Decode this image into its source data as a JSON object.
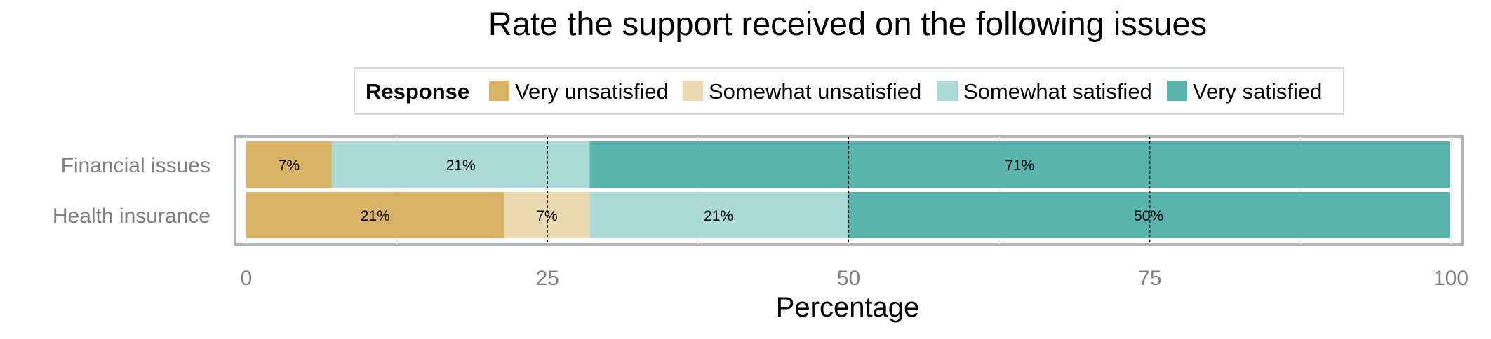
{
  "chart_data": {
    "type": "bar",
    "orientation": "horizontal",
    "stacked": true,
    "title": "Rate the support received on the following issues",
    "xlabel": "Percentage",
    "ylabel": "",
    "xlim": [
      0,
      100
    ],
    "x_ticks": [
      0,
      25,
      50,
      75,
      100
    ],
    "legend": {
      "title": "Response",
      "position": "top",
      "entries": [
        "Very unsatisfied",
        "Somewhat unsatisfied",
        "Somewhat satisfied",
        "Very satisfied"
      ]
    },
    "grid": true,
    "reference_lines": [
      25,
      50,
      75
    ],
    "categories": [
      "Financial issues",
      "Health insurance"
    ],
    "series": [
      {
        "name": "Very unsatisfied",
        "color": "#d8b365",
        "values": [
          7.1,
          21.4
        ],
        "labels": [
          "7%",
          "21%"
        ]
      },
      {
        "name": "Somewhat unsatisfied",
        "color": "#ecdbb2",
        "values": [
          0,
          7.1
        ],
        "labels": [
          "",
          "7%"
        ]
      },
      {
        "name": "Somewhat satisfied",
        "color": "#acdad6",
        "values": [
          21.4,
          21.4
        ],
        "labels": [
          "21%",
          "21%"
        ]
      },
      {
        "name": "Very satisfied",
        "color": "#5ab4ac",
        "values": [
          71.4,
          50.0
        ],
        "labels": [
          "71%",
          "50%"
        ]
      }
    ]
  }
}
